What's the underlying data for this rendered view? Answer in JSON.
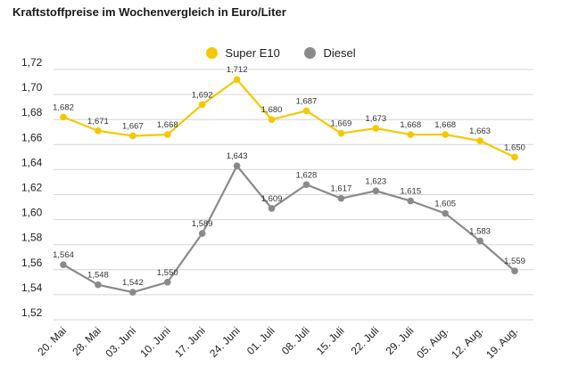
{
  "chart_data": {
    "type": "line",
    "title": "Kraftstoffpreise im Wochenvergleich in Euro/Liter",
    "categories": [
      "20. Mai",
      "28. Mai",
      "03. Juni",
      "10. Juni",
      "17. Juni",
      "24. Juni",
      "01. Juli",
      "08. Juli",
      "15. Juli",
      "22. Juli",
      "29. Juli",
      "05. Aug.",
      "12. Aug.",
      "19. Aug."
    ],
    "series": [
      {
        "name": "Super E10",
        "color": "#f5c800",
        "values": [
          1.682,
          1.671,
          1.667,
          1.668,
          1.692,
          1.712,
          1.68,
          1.687,
          1.669,
          1.673,
          1.668,
          1.668,
          1.663,
          1.65
        ],
        "labels": [
          "1,682",
          "1,671",
          "1,667",
          "1,668",
          "1,692",
          "1,712",
          "1,680",
          "1,687",
          "1,669",
          "1,673",
          "1,668",
          "1,668",
          "1,663",
          "1,650"
        ]
      },
      {
        "name": "Diesel",
        "color": "#8a8a8a",
        "values": [
          1.564,
          1.548,
          1.542,
          1.55,
          1.589,
          1.643,
          1.609,
          1.628,
          1.617,
          1.623,
          1.615,
          1.605,
          1.583,
          1.559
        ],
        "labels": [
          "1,564",
          "1,548",
          "1,542",
          "1,550",
          "1,589",
          "1,643",
          "1,609",
          "1,628",
          "1,617",
          "1,623",
          "1,615",
          "1,605",
          "1,583",
          "1,559"
        ]
      }
    ],
    "ylim": [
      1.52,
      1.72
    ],
    "yticks": [
      1.52,
      1.54,
      1.56,
      1.58,
      1.6,
      1.62,
      1.64,
      1.66,
      1.68,
      1.7,
      1.72
    ],
    "ytick_labels": [
      "1,52",
      "1,54",
      "1,56",
      "1,58",
      "1,60",
      "1,62",
      "1,64",
      "1,66",
      "1,68",
      "1,70",
      "1,72"
    ],
    "grid": true,
    "legend_position": "top-center"
  }
}
